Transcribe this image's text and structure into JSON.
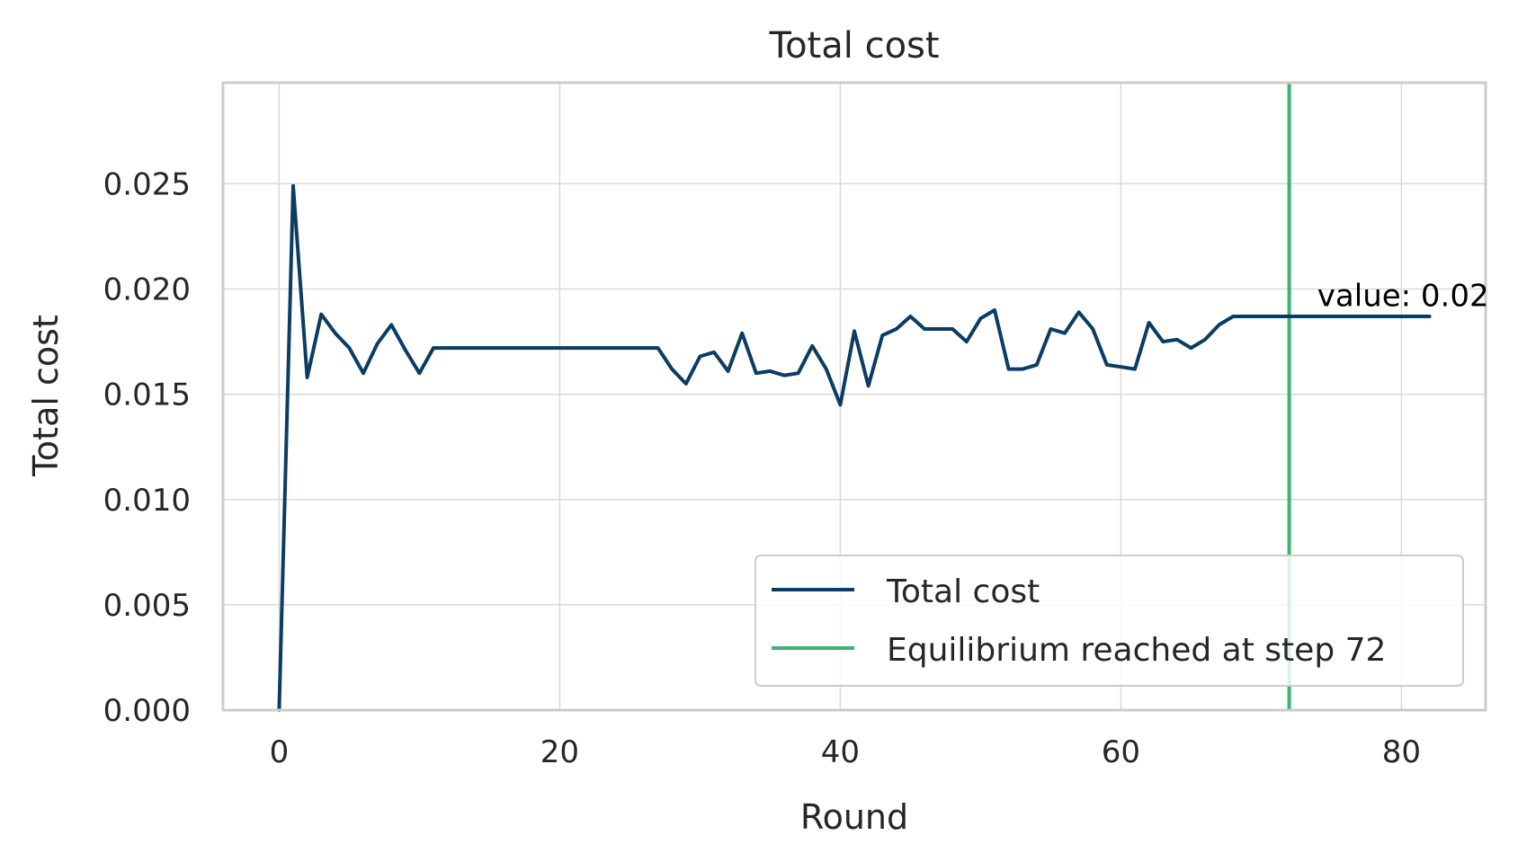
{
  "chart_data": {
    "type": "line",
    "title": "Total cost",
    "xlabel": "Round",
    "ylabel": "Total cost",
    "xlim": [
      -4,
      86
    ],
    "ylim": [
      0,
      0.0298
    ],
    "x_ticks": [
      0,
      20,
      40,
      60,
      80
    ],
    "x_tick_labels": [
      "0",
      "20",
      "40",
      "60",
      "80"
    ],
    "y_ticks": [
      0,
      0.005,
      0.01,
      0.015,
      0.02,
      0.025
    ],
    "y_tick_labels": [
      "0.000",
      "0.005",
      "0.010",
      "0.015",
      "0.020",
      "0.025"
    ],
    "grid": true,
    "legend_position": "lower-right",
    "series": [
      {
        "name": "Total cost",
        "color": "#0b3c63",
        "x": [
          0,
          1,
          2,
          3,
          4,
          5,
          6,
          7,
          8,
          9,
          10,
          11,
          12,
          13,
          14,
          15,
          16,
          17,
          18,
          19,
          20,
          21,
          22,
          23,
          24,
          25,
          26,
          27,
          28,
          29,
          30,
          31,
          32,
          33,
          34,
          35,
          36,
          37,
          38,
          39,
          40,
          41,
          42,
          43,
          44,
          45,
          46,
          47,
          48,
          49,
          50,
          51,
          52,
          53,
          54,
          55,
          56,
          57,
          58,
          59,
          60,
          61,
          62,
          63,
          64,
          65,
          66,
          67,
          68,
          69,
          70,
          71,
          72,
          73,
          74,
          75,
          76,
          77,
          78,
          79,
          80,
          81,
          82
        ],
        "y": [
          0.0,
          0.0249,
          0.0158,
          0.0188,
          0.0179,
          0.0172,
          0.016,
          0.0174,
          0.0183,
          0.0171,
          0.016,
          0.0172,
          0.0172,
          0.0172,
          0.0172,
          0.0172,
          0.0172,
          0.0172,
          0.0172,
          0.0172,
          0.0172,
          0.0172,
          0.0172,
          0.0172,
          0.0172,
          0.0172,
          0.0172,
          0.0172,
          0.0162,
          0.0155,
          0.0168,
          0.017,
          0.0161,
          0.0179,
          0.016,
          0.0161,
          0.0159,
          0.016,
          0.0173,
          0.0162,
          0.0145,
          0.018,
          0.0154,
          0.0178,
          0.0181,
          0.0187,
          0.0181,
          0.0181,
          0.0181,
          0.0175,
          0.0186,
          0.019,
          0.0162,
          0.0162,
          0.0164,
          0.0181,
          0.0179,
          0.0189,
          0.0181,
          0.0164,
          0.0163,
          0.0162,
          0.0184,
          0.0175,
          0.0176,
          0.0172,
          0.0176,
          0.0183,
          0.0187,
          0.0187,
          0.0187,
          0.0187,
          0.0187,
          0.0187,
          0.0187,
          0.0187,
          0.0187,
          0.0187,
          0.0187,
          0.0187,
          0.0187,
          0.0187,
          0.0187
        ]
      },
      {
        "name": "Equilibrium reached at step 72",
        "color": "#3cb371",
        "type": "vline",
        "x": 72
      }
    ],
    "annotations": [
      {
        "text": "value: 0.02",
        "x": 74,
        "y": 0.0192
      }
    ],
    "legend": [
      "Total cost",
      "Equilibrium reached at step 72"
    ]
  }
}
